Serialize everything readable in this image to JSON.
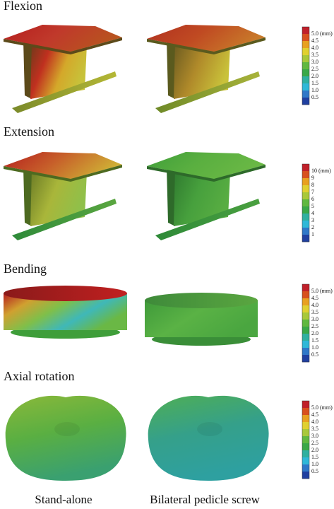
{
  "panels": [
    {
      "title": "Flexion",
      "colorbar": [
        "5.0 (mm)",
        "4.5",
        "4.0",
        "3.5",
        "3.0",
        "2.5",
        "2.0",
        "1.5",
        "1.0",
        "0.5"
      ]
    },
    {
      "title": "Extension",
      "colorbar": [
        "10 (mm)",
        "9",
        "8",
        "7",
        "6",
        "5",
        "4",
        "3",
        "2",
        "1"
      ]
    },
    {
      "title": "Bending",
      "colorbar": [
        "5.0 (mm)",
        "4.5",
        "4.0",
        "3.5",
        "3.0",
        "2.5",
        "2.0",
        "1.5",
        "1.0",
        "0.5"
      ]
    },
    {
      "title": "Axial rotation",
      "colorbar": [
        "5.0 (mm)",
        "4.5",
        "4.0",
        "3.5",
        "3.0",
        "2.5",
        "2.0",
        "1.5",
        "1.0",
        "0.5"
      ]
    }
  ],
  "columns": [
    "Stand-alone",
    "Bilateral pedicle screw"
  ]
}
